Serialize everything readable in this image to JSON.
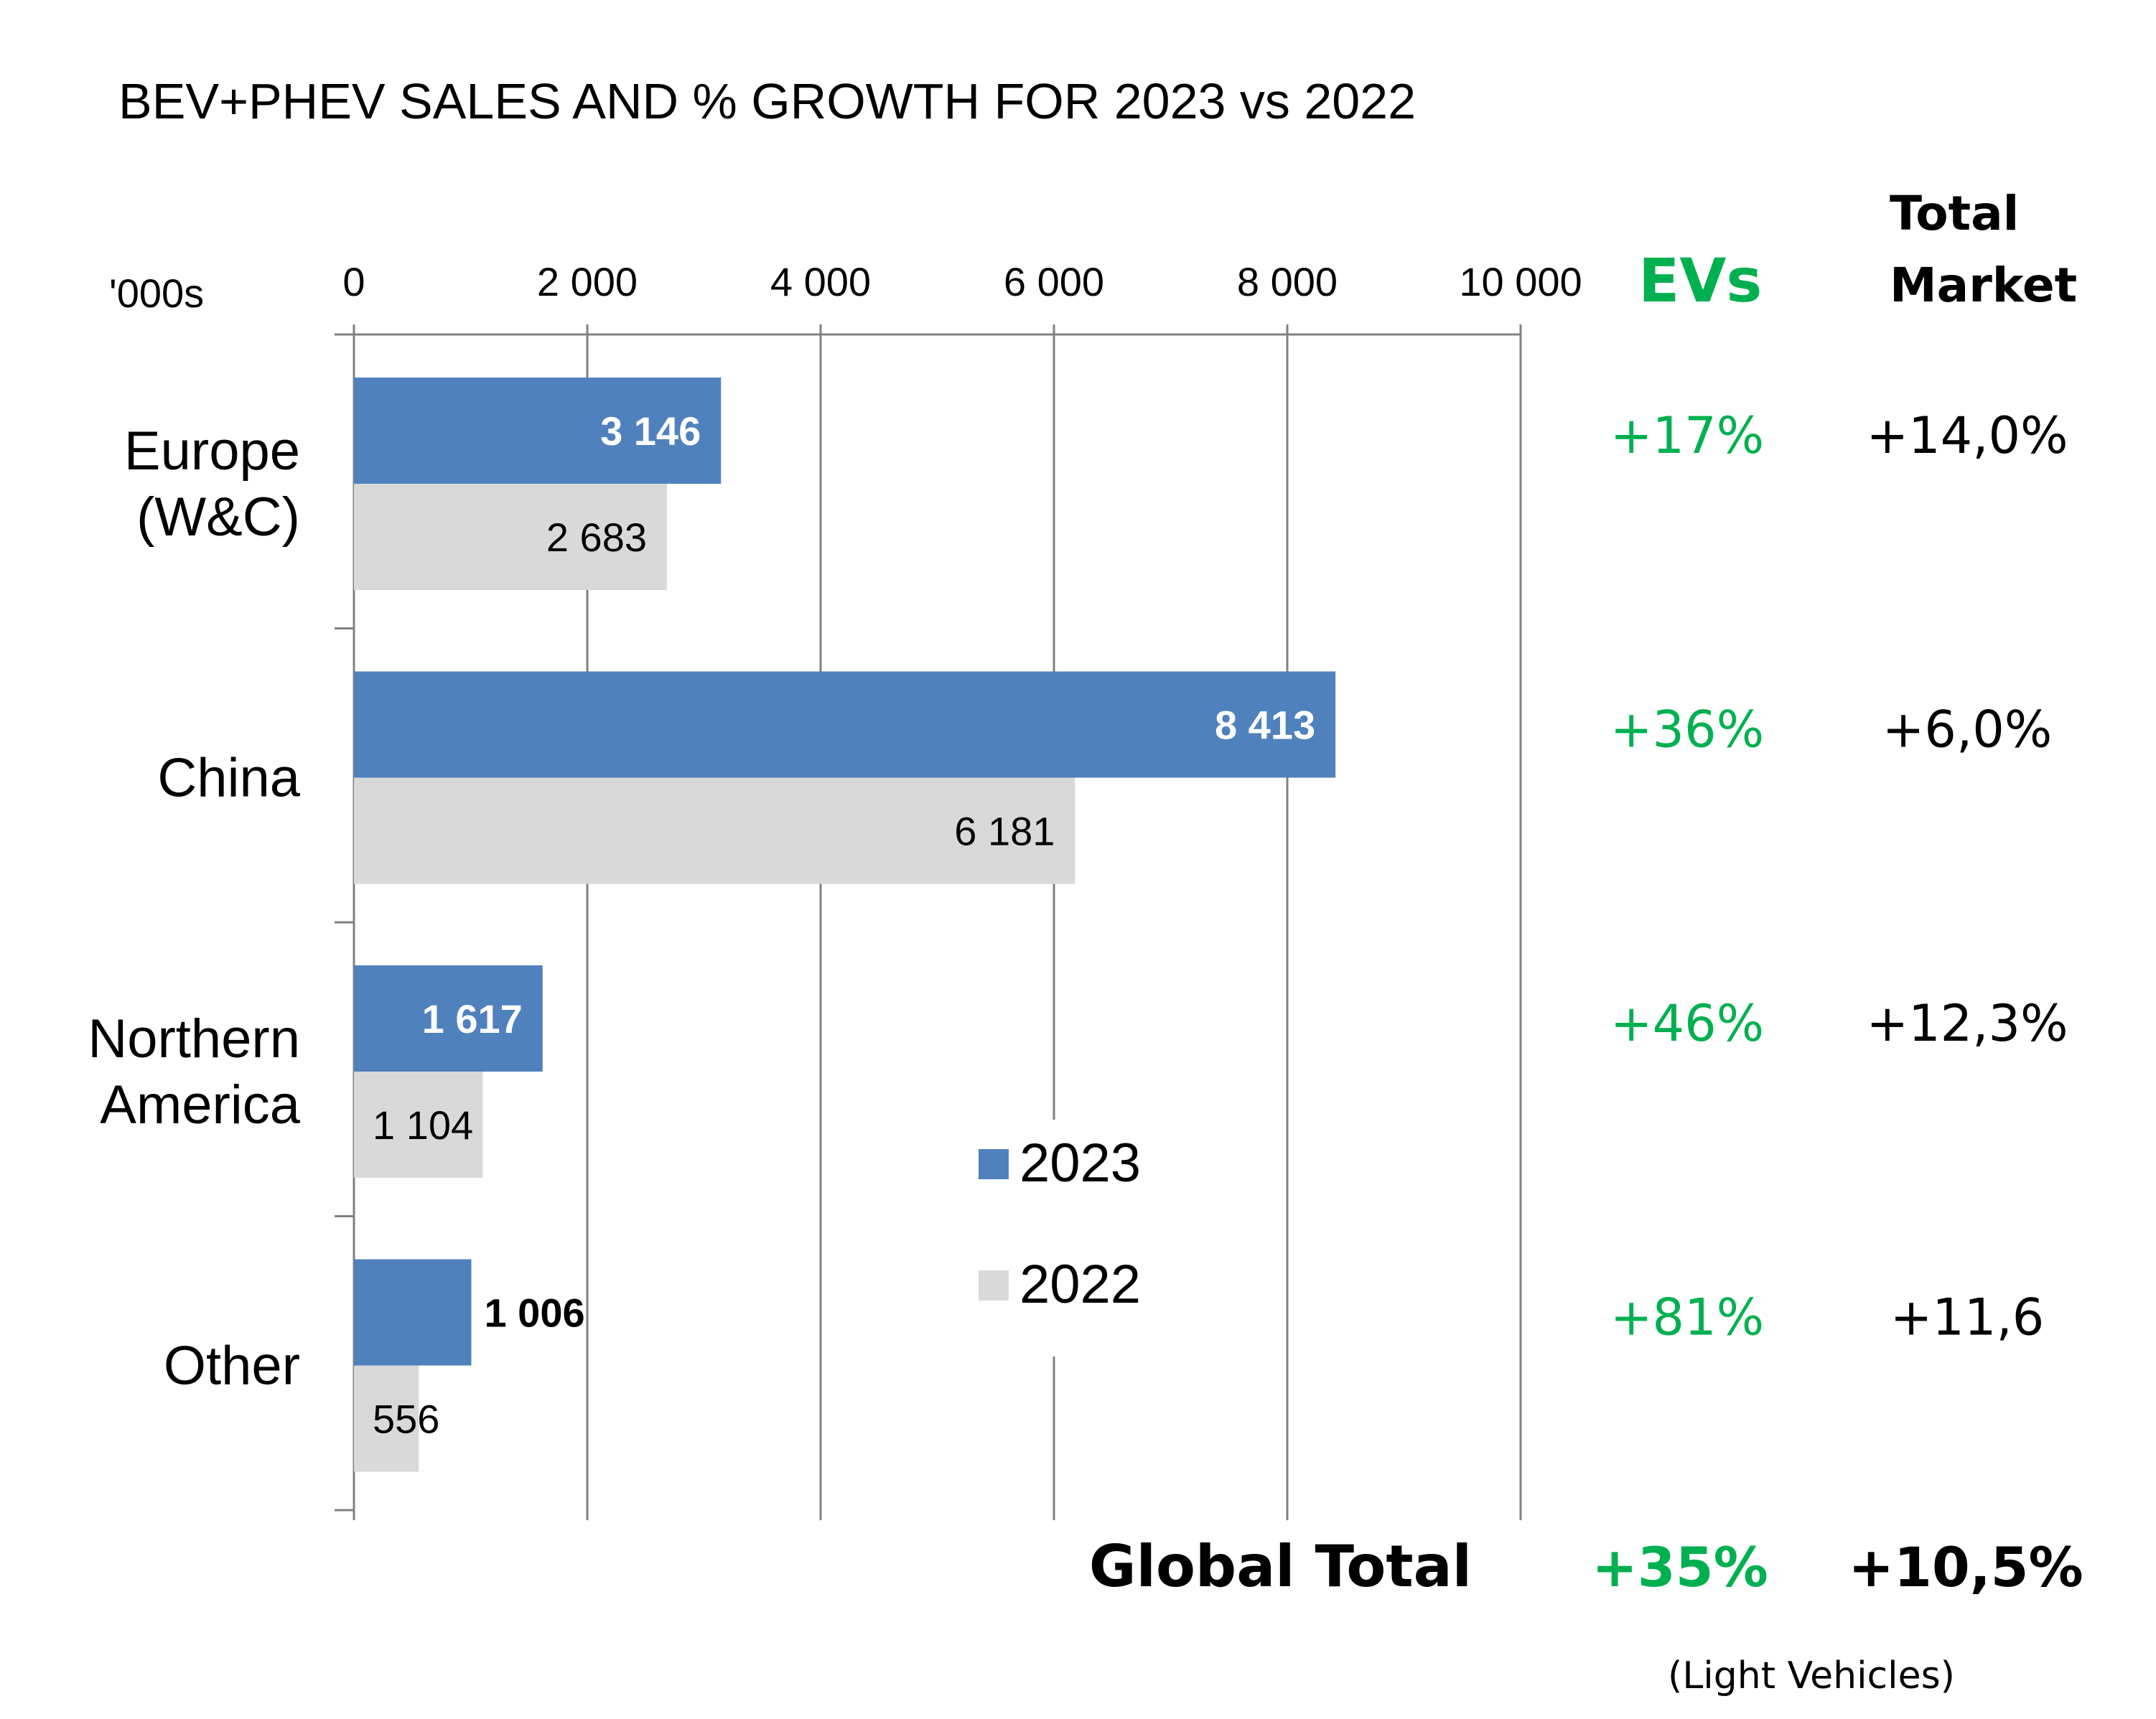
{
  "chart_data": {
    "type": "bar",
    "orientation": "horizontal",
    "title": "BEV+PHEV SALES AND % GROWTH FOR 2023 vs 2022",
    "unit_label": "'000s",
    "xlim": [
      0,
      10000
    ],
    "x_ticks": [
      0,
      2000,
      4000,
      6000,
      8000,
      10000
    ],
    "x_tick_labels": [
      "0",
      "2 000",
      "4 000",
      "6 000",
      "8 000",
      "10 000"
    ],
    "grid": true,
    "categories": [
      {
        "label_lines": [
          "Europe",
          "(W&C)"
        ]
      },
      {
        "label_lines": [
          "China"
        ]
      },
      {
        "label_lines": [
          "Northern",
          "America"
        ]
      },
      {
        "label_lines": [
          "Other"
        ]
      }
    ],
    "series": [
      {
        "name": "2023",
        "color": "#4f81bd",
        "values": [
          3146,
          8413,
          1617,
          1006
        ],
        "labels": [
          "3 146",
          "8 413",
          "1 617",
          "1 006"
        ]
      },
      {
        "name": "2022",
        "color": "#d9d9d9",
        "values": [
          2683,
          6181,
          1104,
          556
        ],
        "labels": [
          "2 683",
          "6 181",
          "1 104",
          "556"
        ]
      }
    ],
    "legend": {
      "position": "inside-lower-right",
      "entries": [
        "2023",
        "2022"
      ]
    }
  },
  "side_table": {
    "ev_header": "EVs",
    "market_header_lines": [
      "Total",
      "Market"
    ],
    "ev_growth": [
      "+17%",
      "+36%",
      "+46%",
      "+81%"
    ],
    "market_growth": [
      "+14,0%",
      "+6,0%",
      "+12,3%",
      "+11,6"
    ],
    "global_label": "Global Total",
    "global_ev": "+35%",
    "global_market": "+10,5%",
    "footnote": "(Light Vehicles)"
  },
  "colors": {
    "ev_green": "#00b050",
    "axis": "#808080",
    "text": "#000000"
  }
}
